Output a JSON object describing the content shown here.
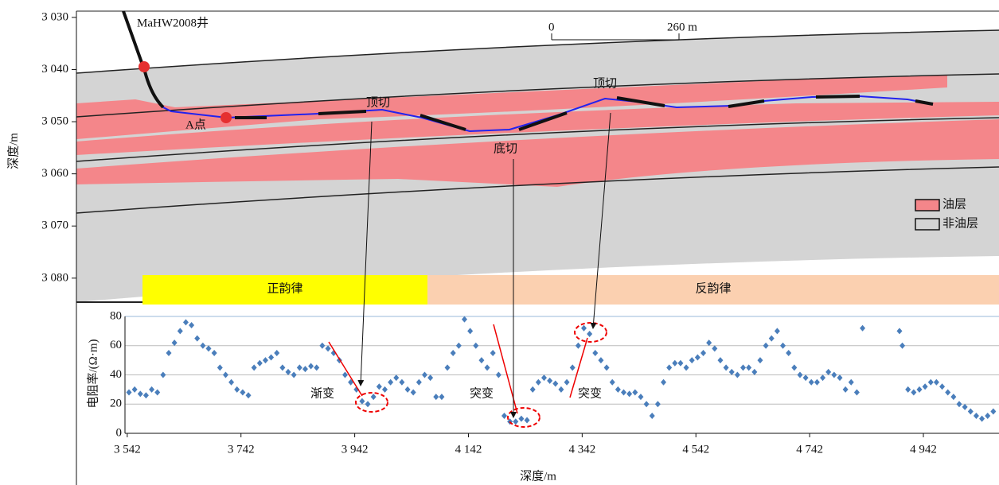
{
  "chart_data": [
    {
      "type": "section",
      "y_label": "深度/m",
      "ylim": [
        3028.8,
        3084.6
      ],
      "yticks": [
        {
          "value": 3030,
          "label": "3 030"
        },
        {
          "value": 3040,
          "label": "3 040"
        },
        {
          "value": 3050,
          "label": "3 050"
        },
        {
          "value": 3060,
          "label": "3 060"
        },
        {
          "value": 3070,
          "label": "3 070"
        },
        {
          "value": 3080,
          "label": "3 080"
        }
      ],
      "well_label": "MaHW2008井",
      "point_label": "A点",
      "annotations": [
        "顶切",
        "顶切",
        "底切"
      ],
      "scale_bar": [
        "0",
        "260 m"
      ],
      "legend": [
        {
          "name": "油层",
          "color": "#f4868a"
        },
        {
          "name": "非油层",
          "color": "#d4d4d4"
        }
      ],
      "zones": [
        {
          "name": "正韵律",
          "color": "#ffff00"
        },
        {
          "name": "反韵律",
          "color": "#fbd0b0"
        }
      ]
    },
    {
      "type": "scatter",
      "y_label": "电阻率/(Ω·m)",
      "x_label": "深度/m",
      "xlim": [
        3538,
        5075
      ],
      "ylim": [
        0,
        80
      ],
      "xticks": [
        {
          "value": 3542,
          "label": "3 542"
        },
        {
          "value": 3742,
          "label": "3 742"
        },
        {
          "value": 3942,
          "label": "3 942"
        },
        {
          "value": 4142,
          "label": "4 142"
        },
        {
          "value": 4342,
          "label": "4 342"
        },
        {
          "value": 4542,
          "label": "4 542"
        },
        {
          "value": 4742,
          "label": "4 742"
        },
        {
          "value": 4942,
          "label": "4 942"
        }
      ],
      "yticks": [
        0,
        20,
        40,
        60,
        80
      ],
      "grid": true,
      "annotations": [
        "渐变",
        "突变",
        "突变"
      ],
      "series": [
        {
          "color": "#4a7ebb",
          "x": [
            3545,
            3555,
            3565,
            3575,
            3585,
            3595,
            3605,
            3615,
            3625,
            3635,
            3645,
            3655,
            3665,
            3675,
            3685,
            3695,
            3705,
            3715,
            3725,
            3735,
            3745,
            3755,
            3765,
            3775,
            3785,
            3795,
            3805,
            3815,
            3825,
            3835,
            3845,
            3855,
            3865,
            3875,
            3885,
            3895,
            3905,
            3915,
            3925,
            3935,
            3945,
            3955,
            3965,
            3975,
            3985,
            3995,
            4005,
            4015,
            4025,
            4035,
            4045,
            4055,
            4065,
            4075,
            4085,
            4095,
            4105,
            4115,
            4125,
            4135,
            4145,
            4155,
            4165,
            4175,
            4185,
            4195,
            4205,
            4215,
            4225,
            4235,
            4245,
            4255,
            4265,
            4275,
            4285,
            4295,
            4305,
            4315,
            4325,
            4335,
            4345,
            4355,
            4365,
            4375,
            4385,
            4395,
            4405,
            4415,
            4425,
            4435,
            4445,
            4455,
            4465,
            4475,
            4485,
            4495,
            4505,
            4515,
            4525,
            4535,
            4545,
            4555,
            4565,
            4575,
            4585,
            4595,
            4605,
            4615,
            4625,
            4635,
            4645,
            4655,
            4665,
            4675,
            4685,
            4695,
            4705,
            4715,
            4725,
            4735,
            4745,
            4755,
            4765,
            4775,
            4785,
            4795,
            4805,
            4815,
            4825,
            4835,
            4900,
            4905,
            4915,
            4925,
            4935,
            4945,
            4955,
            4965,
            4975,
            4985,
            4995,
            5005,
            5015,
            5025,
            5035,
            5045,
            5055,
            5065
          ],
          "values": [
            28,
            30,
            27,
            26,
            30,
            28,
            40,
            55,
            62,
            70,
            76,
            74,
            65,
            60,
            58,
            55,
            45,
            40,
            35,
            30,
            28,
            26,
            45,
            48,
            50,
            52,
            55,
            45,
            42,
            40,
            45,
            44,
            46,
            45,
            60,
            58,
            55,
            50,
            40,
            35,
            30,
            22,
            20,
            25,
            32,
            30,
            35,
            38,
            35,
            30,
            28,
            35,
            40,
            38,
            25,
            25,
            45,
            55,
            60,
            78,
            70,
            60,
            50,
            45,
            55,
            40,
            12,
            8,
            8,
            10,
            9,
            30,
            35,
            38,
            36,
            34,
            30,
            35,
            45,
            60,
            72,
            68,
            55,
            50,
            45,
            35,
            30,
            28,
            27,
            28,
            25,
            20,
            12,
            20,
            35,
            45,
            48,
            48,
            45,
            50,
            52,
            55,
            62,
            58,
            50,
            45,
            42,
            40,
            45,
            45,
            42,
            50,
            60,
            65,
            70,
            60,
            55,
            45,
            40,
            38,
            35,
            35,
            38,
            42,
            40,
            38,
            30,
            35,
            28,
            72,
            70,
            60,
            30,
            28,
            30,
            32,
            35,
            35,
            32,
            28,
            25,
            20,
            18,
            15,
            12,
            10,
            12,
            15
          ]
        }
      ]
    }
  ]
}
